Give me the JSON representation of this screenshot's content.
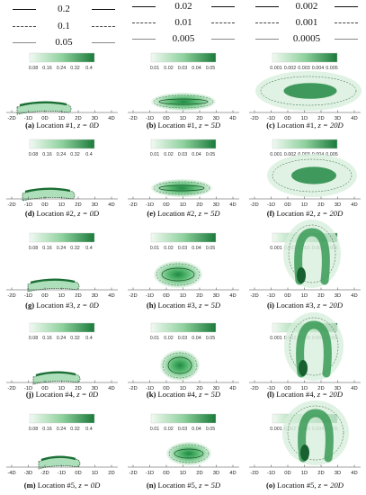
{
  "legends": [
    {
      "values": [
        "0.2",
        "0.1",
        "0.05"
      ]
    },
    {
      "values": [
        "0.02",
        "0.01",
        "0.005"
      ]
    },
    {
      "values": [
        "0.002",
        "0.001",
        "0.0005"
      ]
    }
  ],
  "colorbars": [
    {
      "ticks": [
        "0.08",
        "0.16",
        "0.24",
        "0.32",
        "0.4"
      ]
    },
    {
      "ticks": [
        "0.01",
        "0.02",
        "0.03",
        "0.04",
        "0.05"
      ]
    },
    {
      "ticks": [
        "0.001",
        "0.002",
        "0.003",
        "0.004",
        "0.005"
      ]
    }
  ],
  "x_axis_ticks": {
    "wide": [
      "-2D",
      "-1D",
      "0D",
      "1D",
      "2D",
      "3D",
      "4D"
    ],
    "bottom": [
      "-4D",
      "-3D",
      "-2D",
      "-1D",
      "0D",
      "1D",
      "2D"
    ]
  },
  "colors": {
    "green_dark": "#1a7a3a",
    "green_light": "#e8f5e9",
    "contour": "#2e5a36"
  },
  "panels": [
    {
      "label": "(a)",
      "loc": "Location #1",
      "z": "z = 0D"
    },
    {
      "label": "(b)",
      "loc": "Location #1",
      "z": "z = 5D"
    },
    {
      "label": "(c)",
      "loc": "Location #1",
      "z": "z = 20D"
    },
    {
      "label": "(d)",
      "loc": "Location #2",
      "z": "z = 0D"
    },
    {
      "label": "(e)",
      "loc": "Location #2",
      "z": "z = 5D"
    },
    {
      "label": "(f)",
      "loc": "Location #2",
      "z": "z = 20D"
    },
    {
      "label": "(g)",
      "loc": "Location #3",
      "z": "z = 0D"
    },
    {
      "label": "(h)",
      "loc": "Location #3",
      "z": "z = 5D"
    },
    {
      "label": "(i)",
      "loc": "Location #3",
      "z": "z = 20D"
    },
    {
      "label": "(j)",
      "loc": "Location #4",
      "z": "z = 0D"
    },
    {
      "label": "(k)",
      "loc": "Location #4",
      "z": "z = 5D"
    },
    {
      "label": "(l)",
      "loc": "Location #4",
      "z": "z = 20D"
    },
    {
      "label": "(m)",
      "loc": "Location #5",
      "z": "z = 0D"
    },
    {
      "label": "(n)",
      "loc": "Location #5",
      "z": "z = 5D"
    },
    {
      "label": "(o)",
      "loc": "Location #5",
      "z": "z = 20D"
    }
  ]
}
